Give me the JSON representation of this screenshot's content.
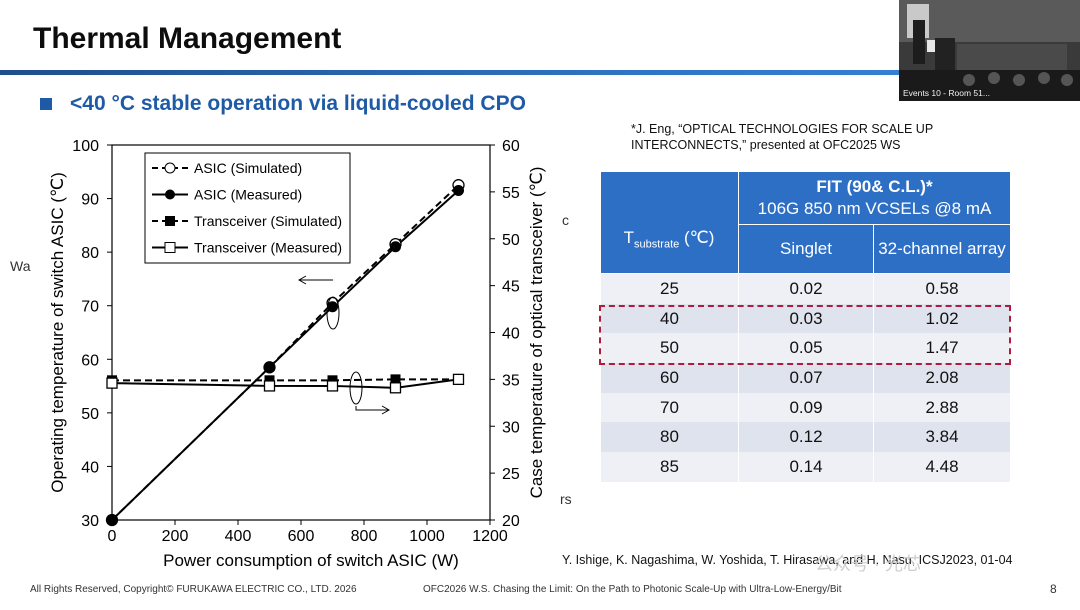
{
  "header": {
    "title": "Thermal Management",
    "subtitle": "<40 °C stable operation via liquid-cooled CPO"
  },
  "video": {
    "caption": "Events 10 - Room 51..."
  },
  "references": {
    "top": "*J. Eng, “OPTICAL TECHNOLOGIES FOR SCALE UP INTERCONNECTS,” presented at OFC2025 WS",
    "bottom": "Y. Ishige, K. Nagashima, W. Yoshida, T. Hirasawa, and H. Nasu, ICSJ2023, 01-04"
  },
  "stray_text": {
    "left": "Wa",
    "right_top": "c",
    "right_bottom": "rs"
  },
  "table": {
    "header_title": "FIT (90& C.L.)*",
    "header_subtitle": "106G 850 nm VCSELs @8 mA",
    "col_temp_main": "T",
    "col_temp_sub": "substrate",
    "col_temp_unit": " (℃)",
    "col_singlet": "Singlet",
    "col_array": "32-channel array",
    "rows": [
      {
        "t": "25",
        "singlet": "0.02",
        "array": "0.58"
      },
      {
        "t": "40",
        "singlet": "0.03",
        "array": "1.02"
      },
      {
        "t": "50",
        "singlet": "0.05",
        "array": "1.47"
      },
      {
        "t": "60",
        "singlet": "0.07",
        "array": "2.08"
      },
      {
        "t": "70",
        "singlet": "0.09",
        "array": "2.88"
      },
      {
        "t": "80",
        "singlet": "0.12",
        "array": "3.84"
      },
      {
        "t": "85",
        "singlet": "0.14",
        "array": "4.48"
      }
    ]
  },
  "footer": {
    "copyright": "All Rights Reserved, Copyright© FURUKAWA ELECTRIC CO., LTD. 2026",
    "workshop": "OFC2026 W.S. Chasing the Limit: On the Path to Photonic Scale-Up with Ultra-Low-Energy/Bit",
    "page": "8"
  },
  "watermark": "公众号 · 光芯",
  "chart_data": {
    "type": "line",
    "xlabel": "Power consumption of switch ASIC (W)",
    "ylabel_left": "Operating temperature of switch ASIC (℃)",
    "ylabel_right": "Case temperature of optical transceiver (℃)",
    "xlim": [
      0,
      1200
    ],
    "ylim_left": [
      30,
      100
    ],
    "ylim_right": [
      20,
      60
    ],
    "x_ticks": [
      0,
      200,
      400,
      600,
      800,
      1000,
      1200
    ],
    "y_ticks_left": [
      30,
      40,
      50,
      60,
      70,
      80,
      90,
      100
    ],
    "y_ticks_right": [
      20,
      25,
      30,
      35,
      40,
      45,
      50,
      55,
      60
    ],
    "legend_position": "top-left",
    "series": [
      {
        "name": "ASIC (Simulated)",
        "axis": "left",
        "line": "dashed",
        "marker": "open-circle",
        "x": [
          0,
          500,
          700,
          900,
          1100
        ],
        "y": [
          30,
          58.5,
          70.5,
          81.5,
          92.5
        ]
      },
      {
        "name": "ASIC (Measured)",
        "axis": "left",
        "line": "solid",
        "marker": "filled-circle",
        "x": [
          0,
          500,
          700,
          900,
          1100
        ],
        "y": [
          30,
          58.5,
          69.8,
          81,
          91.5
        ]
      },
      {
        "name": "Transceiver (Simulated)",
        "axis": "right",
        "line": "dashed",
        "marker": "filled-square",
        "x": [
          0,
          500,
          700,
          900,
          1100
        ],
        "y": [
          34.9,
          34.9,
          34.9,
          35.0,
          35.0
        ]
      },
      {
        "name": "Transceiver (Measured)",
        "axis": "right",
        "line": "solid",
        "marker": "open-square",
        "x": [
          0,
          500,
          700,
          900,
          1100
        ],
        "y": [
          34.6,
          34.3,
          34.3,
          34.1,
          35.0
        ]
      }
    ]
  }
}
